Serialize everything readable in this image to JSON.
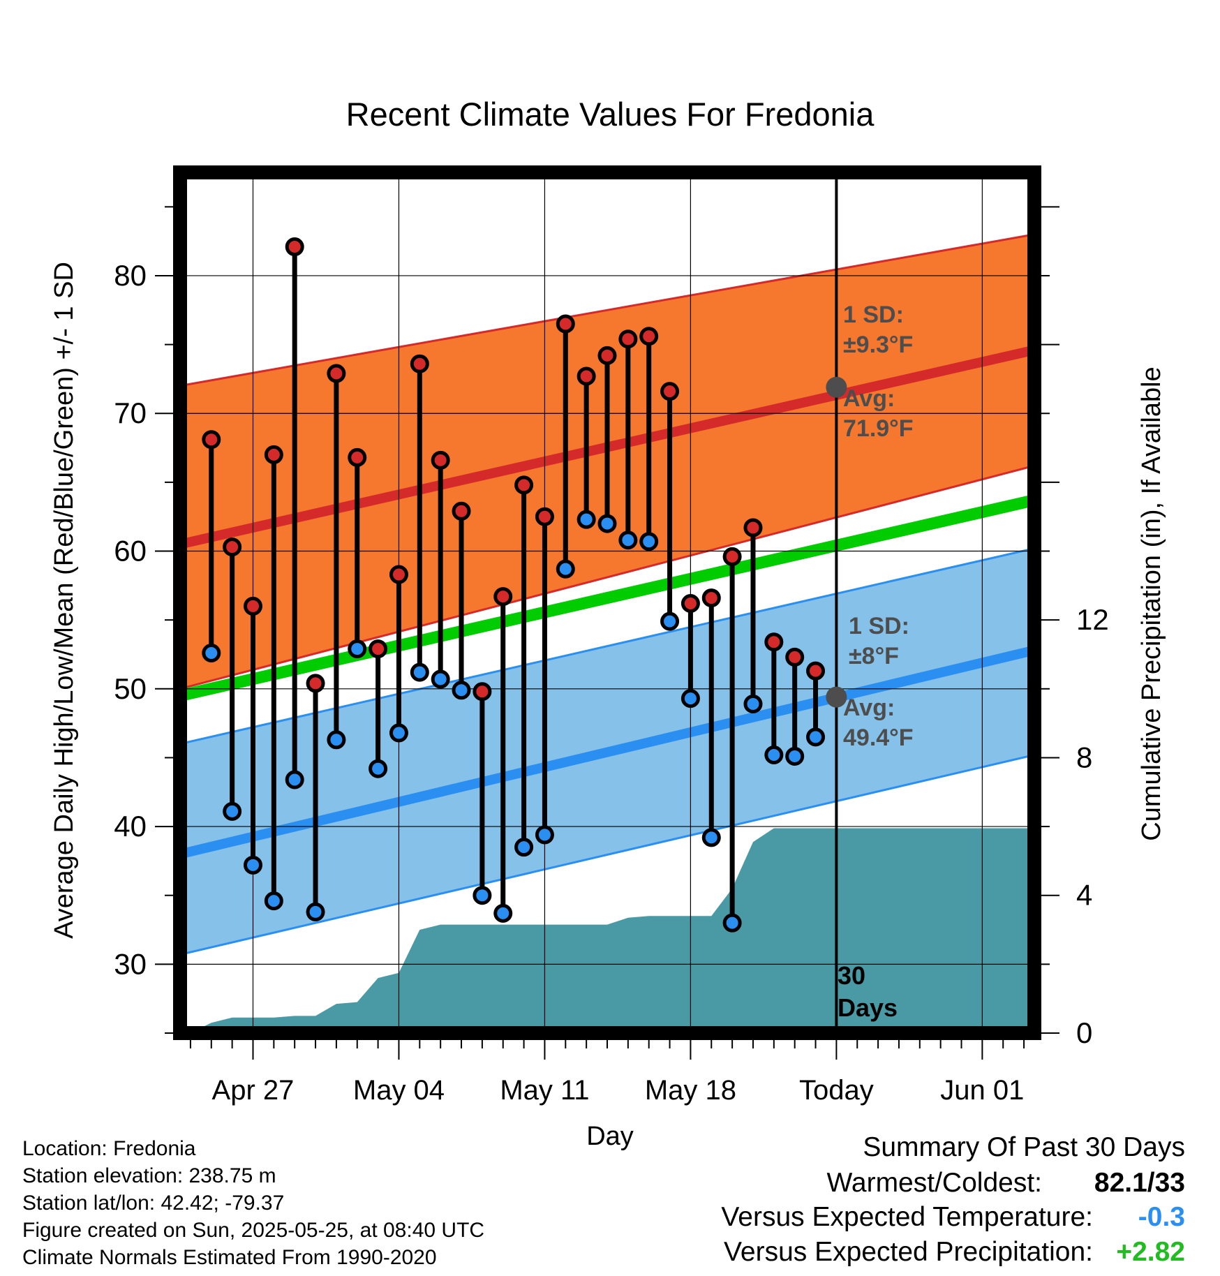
{
  "chart_data": {
    "type": "line",
    "title": "Recent Climate Values For Fredonia",
    "xlabel": "Day",
    "ylabel_left": "Average Daily High/Low/Mean (Red/Blue/Green) +/- 1 SD",
    "ylabel_right": "Cumulative Precipitation (in), If Available",
    "x_tick_labels": [
      "Apr 27",
      "May 04",
      "May 11",
      "May 18",
      "Today",
      "Jun 01"
    ],
    "x_tick_days": [
      3,
      10,
      17,
      24,
      31,
      38
    ],
    "x_range_days": [
      -0.5,
      40.5
    ],
    "y_left_ticks": [
      30,
      40,
      50,
      60,
      70,
      80
    ],
    "y_left_range": [
      25,
      87.5
    ],
    "y_right_ticks": [
      0,
      4,
      8,
      12
    ],
    "y_right_range": [
      0,
      25
    ],
    "days": [
      1,
      2,
      3,
      4,
      5,
      6,
      7,
      8,
      9,
      10,
      11,
      12,
      13,
      14,
      15,
      16,
      17,
      18,
      19,
      20,
      21,
      22,
      23,
      24,
      25,
      26,
      27,
      28,
      29,
      30
    ],
    "series": [
      {
        "name": "High",
        "color": "#d42a2a",
        "values": [
          68.1,
          60.3,
          56.0,
          67.0,
          82.1,
          50.4,
          72.9,
          66.8,
          52.9,
          58.3,
          73.6,
          66.6,
          62.9,
          49.8,
          56.7,
          64.8,
          62.5,
          76.5,
          72.7,
          74.2,
          75.4,
          75.6,
          71.6,
          56.2,
          56.6,
          59.6,
          61.7,
          53.4,
          52.3,
          51.3
        ]
      },
      {
        "name": "Low",
        "color": "#2a8ff0",
        "values": [
          52.6,
          41.1,
          37.2,
          34.6,
          43.4,
          33.8,
          46.3,
          52.9,
          44.2,
          46.8,
          51.2,
          50.7,
          49.9,
          35.0,
          33.7,
          38.5,
          39.4,
          58.7,
          62.3,
          62.0,
          60.8,
          60.7,
          54.9,
          49.3,
          39.2,
          33.0,
          48.9,
          45.2,
          45.1,
          46.5
        ]
      }
    ],
    "normals": {
      "high_avg_start": 60.5,
      "high_avg_end": 74.6,
      "high_sd_upper_start": 72.0,
      "high_sd_upper_end": 83.0,
      "high_sd_lower_start": 50.0,
      "high_sd_lower_end": 66.2,
      "low_avg_start": 38.0,
      "low_avg_end": 52.8,
      "low_sd_upper_start": 46.0,
      "low_sd_upper_end": 60.2,
      "low_sd_lower_start": 30.7,
      "low_sd_lower_end": 45.2,
      "mean_start": 49.5,
      "mean_end": 63.7
    },
    "precipitation": {
      "x": [
        0,
        1,
        2,
        3,
        4,
        5,
        6,
        7,
        8,
        9,
        10,
        11,
        12,
        13,
        14,
        15,
        16,
        17,
        18,
        19,
        20,
        21,
        22,
        23,
        24,
        25,
        26,
        27,
        28,
        30,
        40.5
      ],
      "values": [
        0,
        0.3,
        0.45,
        0.45,
        0.45,
        0.5,
        0.5,
        0.85,
        0.9,
        1.6,
        1.75,
        3.0,
        3.15,
        3.15,
        3.15,
        3.15,
        3.15,
        3.15,
        3.15,
        3.15,
        3.15,
        3.35,
        3.4,
        3.4,
        3.4,
        3.4,
        4.2,
        5.55,
        5.95,
        5.95,
        5.95
      ]
    },
    "annotations": {
      "high_sd_line1": "1 SD:",
      "high_sd_line2": "±9.3°F",
      "high_avg_line1": "Avg:",
      "high_avg_line2": "71.9°F",
      "low_sd_line1": "1 SD:",
      "low_sd_line2": "±8°F",
      "low_avg_line1": "Avg:",
      "low_avg_line2": "49.4°F",
      "days_line1": "30",
      "days_line2": "Days",
      "today_high_avg": 71.9,
      "today_low_avg": 49.4
    },
    "colors": {
      "high_band": "#f5782e",
      "high_line": "#d42a2a",
      "low_band": "#85c1e9",
      "low_line": "#2a8ff0",
      "mean_line": "#00cc00",
      "precip": "#4a9aa5",
      "annotation": "#4d4d4d"
    }
  },
  "footer": {
    "location": "Location: Fredonia",
    "elevation": "Station elevation: 238.75 m",
    "latlon": "Station lat/lon: 42.42; -79.37",
    "created": "Figure created on Sun, 2025-05-25, at 08:40 UTC",
    "normals": "Climate Normals Estimated From 1990-2020"
  },
  "summary": {
    "heading": "Summary Of Past 30 Days",
    "warmest_label": "Warmest/Coldest:",
    "warmest_value": "82.1/33",
    "temp_label": "Versus Expected Temperature:",
    "temp_value": "-0.3",
    "temp_color": "#2a8ff0",
    "precip_label": "Versus Expected Precipitation:",
    "precip_value": "+2.82",
    "precip_color": "#22bb22"
  }
}
